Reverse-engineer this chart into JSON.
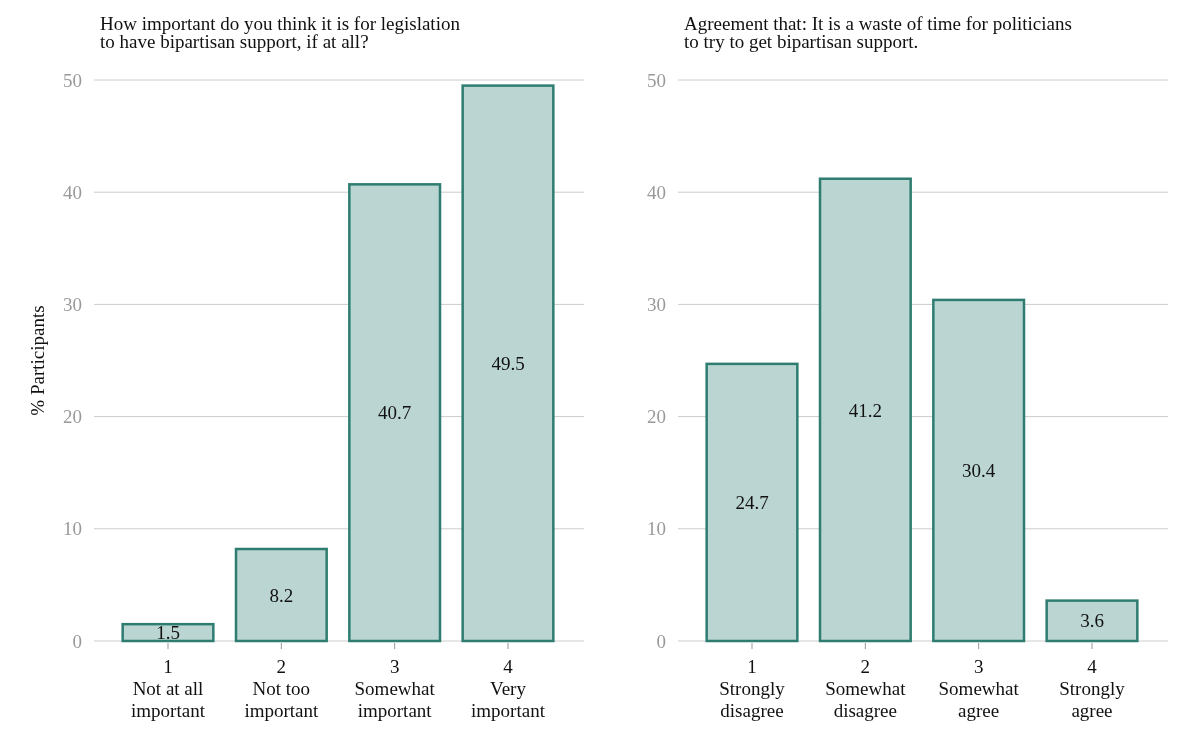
{
  "chart_data": [
    {
      "type": "bar",
      "title": "How important do you think it is for legislation\nto have bipartisan support, if at all?",
      "ylabel": "% Participants",
      "categories": [
        "1\nNot at all\nimportant",
        "2\nNot too\nimportant",
        "3\nSomewhat\nimportant",
        "4\nVery\nimportant"
      ],
      "values": [
        1.5,
        8.2,
        40.7,
        49.5
      ],
      "color": "#bad5d2",
      "ylim": [
        0,
        50
      ],
      "yticks": [
        0,
        10,
        20,
        30,
        40,
        50
      ],
      "grid": "y",
      "data_labels": true
    },
    {
      "type": "bar",
      "title": "Agreement that: It is a waste of time for politicians\nto try to get bipartisan support.",
      "categories": [
        "1\nStrongly\ndisagree",
        "2\nSomewhat\ndisagree",
        "3\nSomewhat\nagree",
        "4\nStrongly\nagree"
      ],
      "values": [
        24.7,
        41.2,
        30.4,
        3.6
      ],
      "color": "#bad5d2",
      "ylim": [
        0,
        50
      ],
      "yticks": [
        0,
        10,
        20,
        30,
        40,
        50
      ],
      "grid": "y",
      "data_labels": true
    }
  ]
}
